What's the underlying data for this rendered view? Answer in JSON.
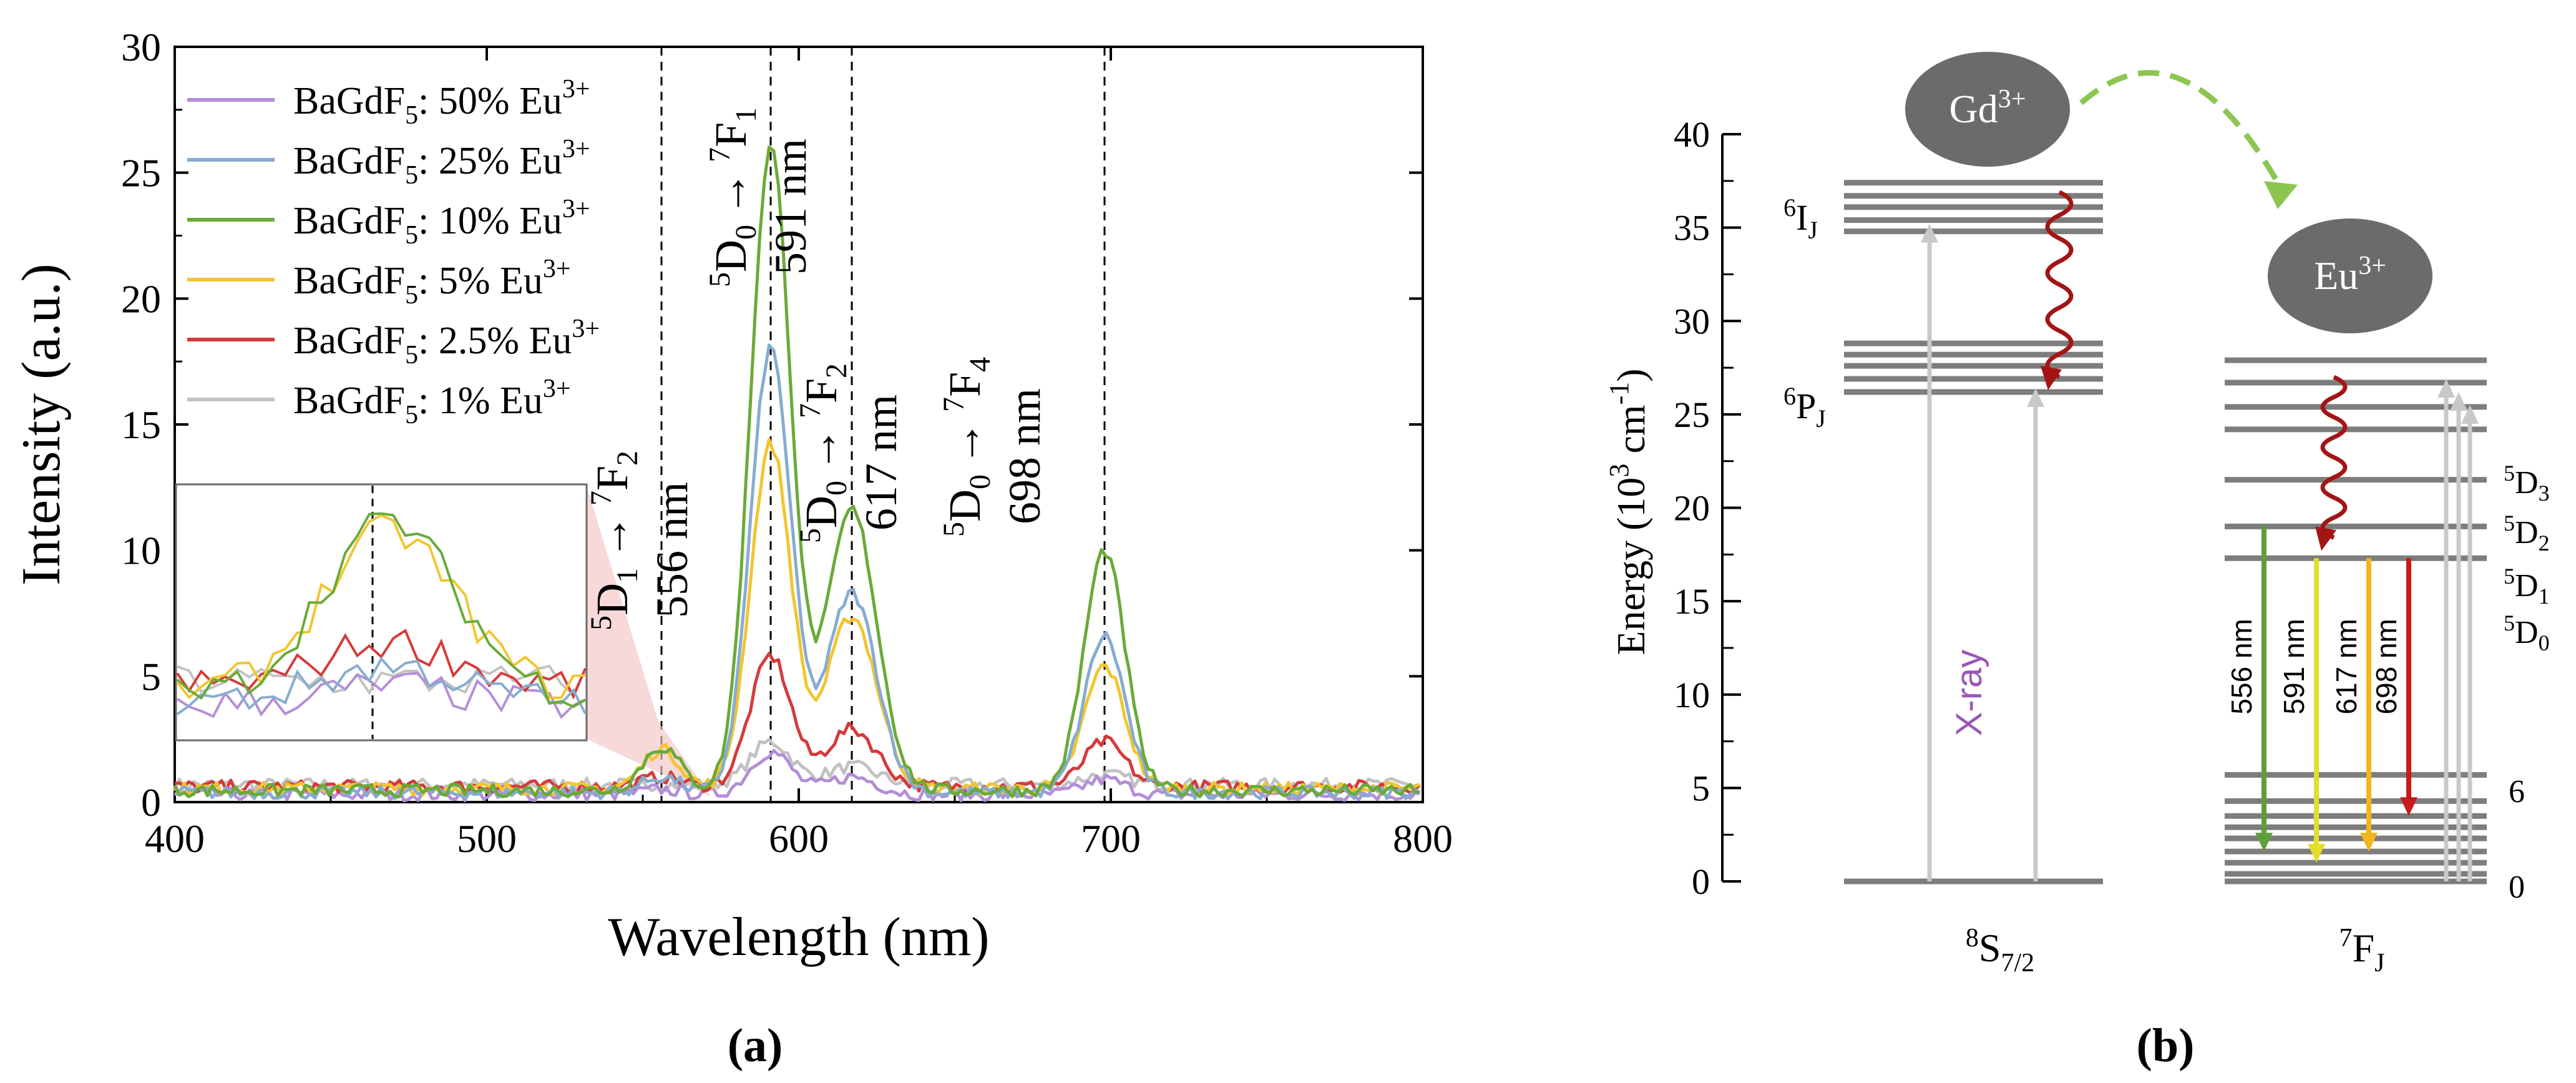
{
  "panel_a": {
    "caption": "(a)",
    "chart_data": {
      "type": "line",
      "xlabel": "Wavelength (nm)",
      "ylabel": "Intensity (a.u.)",
      "xlim": [
        400,
        800
      ],
      "ylim": [
        0,
        30
      ],
      "x_ticks": [
        400,
        500,
        600,
        700,
        800
      ],
      "y_ticks": [
        0,
        5,
        10,
        15,
        20,
        25,
        30
      ],
      "grid": false,
      "legend_position": "top-left",
      "series": [
        {
          "name": "BaGdF5: 50% Eu3+",
          "color": "#b48ed8",
          "peaks": [
            {
              "x": 556,
              "y": 0.5
            },
            {
              "x": 591,
              "y": 2.0
            },
            {
              "x": 617,
              "y": 1.0
            },
            {
              "x": 698,
              "y": 0.9
            }
          ]
        },
        {
          "name": "BaGdF5: 25% Eu3+",
          "color": "#86acd0",
          "peaks": [
            {
              "x": 556,
              "y": 1.0
            },
            {
              "x": 591,
              "y": 18.0
            },
            {
              "x": 617,
              "y": 8.3
            },
            {
              "x": 698,
              "y": 6.6
            }
          ]
        },
        {
          "name": "BaGdF5: 10% Eu3+",
          "color": "#6aaa38",
          "peaks": [
            {
              "x": 556,
              "y": 2.2
            },
            {
              "x": 591,
              "y": 26.0
            },
            {
              "x": 617,
              "y": 11.6
            },
            {
              "x": 698,
              "y": 10.0
            }
          ]
        },
        {
          "name": "BaGdF5: 5% Eu3+",
          "color": "#f2c530",
          "peaks": [
            {
              "x": 556,
              "y": 2.1
            },
            {
              "x": 591,
              "y": 14.2
            },
            {
              "x": 617,
              "y": 7.4
            },
            {
              "x": 698,
              "y": 5.4
            }
          ]
        },
        {
          "name": "BaGdF5: 2.5% Eu3+",
          "color": "#d63a3a",
          "peaks": [
            {
              "x": 556,
              "y": 1.0
            },
            {
              "x": 591,
              "y": 5.8
            },
            {
              "x": 617,
              "y": 2.9
            },
            {
              "x": 698,
              "y": 2.4
            }
          ]
        },
        {
          "name": "BaGdF5: 1% Eu3+",
          "color": "#c2c2c2",
          "peaks": [
            {
              "x": 556,
              "y": 0.6
            },
            {
              "x": 591,
              "y": 2.4
            },
            {
              "x": 617,
              "y": 1.4
            },
            {
              "x": 698,
              "y": 1.1
            }
          ]
        }
      ],
      "reference_lines": [
        556,
        591,
        617,
        698
      ],
      "annotations": [
        {
          "transition": "5D1 → 7F2",
          "wavelength": "556 nm"
        },
        {
          "transition": "5D0 → 7F1",
          "wavelength": "591 nm"
        },
        {
          "transition": "5D0 → 7F2",
          "wavelength": "617 nm"
        },
        {
          "transition": "5D0 → 7F4",
          "wavelength": "698 nm"
        }
      ],
      "inset": {
        "description": "zoom of 556 nm region",
        "x_range": [
          530,
          580
        ]
      }
    },
    "legend": {
      "prefix": "BaGdF",
      "prefix_sub": "5",
      "ion": "Eu",
      "ion_sup": "3+",
      "concentrations": [
        "50%",
        "25%",
        "10%",
        "5%",
        "2.5%",
        "1%"
      ]
    },
    "annot_text": {
      "arrow": "→",
      "wl_556": "556 nm",
      "wl_591": "591 nm",
      "wl_617": "617 nm",
      "wl_698": "698 nm",
      "sup5": "5",
      "sup7": "7",
      "D": "D",
      "F": "F",
      "sub0": "0",
      "sub1": "1",
      "sub2": "2",
      "sub4": "4"
    }
  },
  "panel_b": {
    "caption": "(b)",
    "ylabel_pre": "Energy (10",
    "ylabel_sup": "3",
    "ylabel_post": " cm",
    "ylabel_sup2": "-1",
    "ylabel_end": ")",
    "y_ticks": [
      0,
      5,
      10,
      15,
      20,
      25,
      30,
      35,
      40
    ],
    "energy_max": 40,
    "gd_levels": [
      0,
      26.2,
      26.9,
      27.6,
      28.2,
      28.8,
      34.8,
      35.4,
      36.1,
      36.7,
      37.4
    ],
    "eu_levels": [
      0,
      0.4,
      1.0,
      1.6,
      2.3,
      2.9,
      3.5,
      4.3,
      5.7,
      17.3,
      19.0,
      21.5,
      24.2,
      25.4,
      26.7,
      27.9
    ],
    "gd_ion": "Gd",
    "eu_ion": "Eu",
    "ion_charge": "3+",
    "gd_label_6I": {
      "sup": "6",
      "main": "I",
      "sub": "J"
    },
    "gd_label_6P": {
      "sup": "6",
      "main": "P",
      "sub": "J"
    },
    "gd_ground": {
      "sup": "8",
      "main": "S",
      "sub": "7/2"
    },
    "eu_ground": {
      "sup": "7",
      "main": "F",
      "sub": "J"
    },
    "eu_labels": [
      {
        "sup": "5",
        "main": "D",
        "sub": "3"
      },
      {
        "sup": "5",
        "main": "D",
        "sub": "2"
      },
      {
        "sup": "5",
        "main": "D",
        "sub": "1"
      },
      {
        "sup": "5",
        "main": "D",
        "sub": "0"
      }
    ],
    "eu_j_labels": [
      "6",
      "0"
    ],
    "xray_label": "X-ray",
    "xray_color": "#9a55b9",
    "emissions": [
      {
        "label": "556 nm",
        "color": "#5f9e3a",
        "from": 19.0
      },
      {
        "label": "591 nm",
        "color": "#e4dd2a",
        "from": 17.3
      },
      {
        "label": "617 nm",
        "color": "#f2b51a",
        "from": 17.3
      },
      {
        "label": "698 nm",
        "color": "#c41a1a",
        "from": 17.3
      }
    ],
    "relax_color": "#a31515",
    "transfer_color": "#8cc650",
    "level_color": "#7d7d7d",
    "ion_fill": "#6b6b6b"
  }
}
